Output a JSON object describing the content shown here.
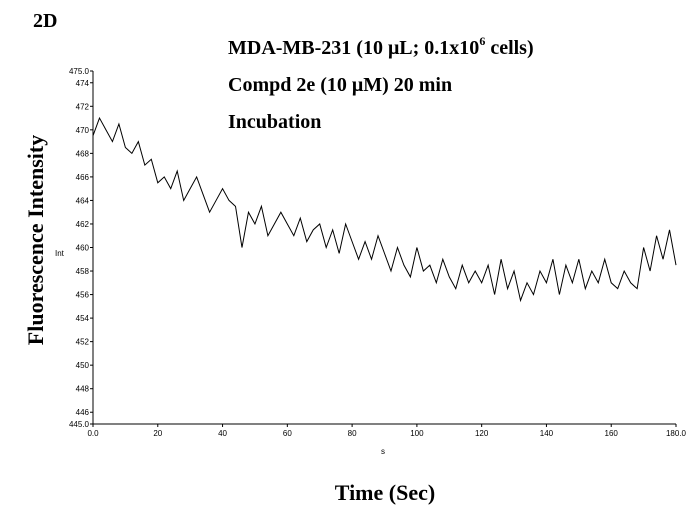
{
  "chart_data": {
    "type": "line",
    "panel_label": "2D",
    "title_line1": [
      "MDA-MB-231 (10 μL; 0.1x10",
      "6",
      " cells)"
    ],
    "title_line2": "Compd 2e (10 μM) 20 min",
    "title_line3": "Incubation",
    "ylabel": "Fluorescence Intensity",
    "ylabel_inner": "Int",
    "xlabel": "Time (Sec)",
    "xlabel_inner": "s",
    "xlim": [
      0,
      180
    ],
    "ylim": [
      445,
      475
    ],
    "xticks": [
      {
        "value": 0,
        "label": "0.0"
      },
      20,
      40,
      60,
      80,
      100,
      120,
      140,
      160,
      {
        "value": 180,
        "label": "180.0"
      }
    ],
    "yticks": [
      {
        "value": 445,
        "label": "445.0"
      },
      446,
      448,
      450,
      452,
      454,
      456,
      458,
      460,
      462,
      464,
      466,
      468,
      470,
      472,
      474,
      {
        "value": 475,
        "label": "475.0"
      }
    ],
    "x": [
      0,
      2,
      4,
      6,
      8,
      10,
      12,
      14,
      16,
      18,
      20,
      22,
      24,
      26,
      28,
      30,
      32,
      34,
      36,
      38,
      40,
      42,
      44,
      46,
      48,
      50,
      52,
      54,
      56,
      58,
      60,
      62,
      64,
      66,
      68,
      70,
      72,
      74,
      76,
      78,
      80,
      82,
      84,
      86,
      88,
      90,
      92,
      94,
      96,
      98,
      100,
      102,
      104,
      106,
      108,
      110,
      112,
      114,
      116,
      118,
      120,
      122,
      124,
      126,
      128,
      130,
      132,
      134,
      136,
      138,
      140,
      142,
      144,
      146,
      148,
      150,
      152,
      154,
      156,
      158,
      160,
      162,
      164,
      166,
      168,
      170,
      172,
      174,
      176,
      178,
      180
    ],
    "series": [
      {
        "color": "#000000",
        "values": [
          469.5,
          471,
          470,
          469,
          470.5,
          468.5,
          468,
          469,
          467,
          467.5,
          465.5,
          466,
          465,
          466.5,
          464,
          465,
          466,
          464.5,
          463,
          464,
          465,
          464,
          463.5,
          460,
          463,
          462,
          463.5,
          461,
          462,
          463,
          462,
          461,
          462.5,
          460.5,
          461.5,
          462,
          460,
          461.5,
          459.5,
          462,
          460.5,
          459,
          460.5,
          459,
          461,
          459.5,
          458,
          460,
          458.5,
          457.5,
          460,
          458,
          458.5,
          457,
          459,
          457.5,
          456.5,
          458.5,
          457,
          458,
          457,
          458.5,
          456,
          459,
          456.5,
          458,
          455.5,
          457,
          456,
          458,
          457,
          459,
          456,
          458.5,
          457,
          459,
          456.5,
          458,
          457,
          459,
          457,
          456.5,
          458,
          457,
          456.5,
          460,
          458,
          461,
          459,
          461.5,
          458.5
        ]
      }
    ]
  }
}
